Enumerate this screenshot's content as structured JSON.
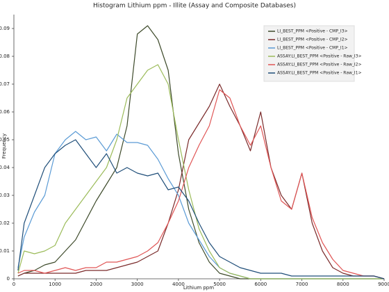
{
  "chart_data": {
    "type": "line",
    "title": "Histogram Lithium ppm - Illite (Assay and Composite Databases)",
    "xlabel": "Lithium ppm",
    "ylabel": "Frequency",
    "xlim": [
      0,
      9000
    ],
    "ylim": [
      0,
      0.095
    ],
    "xticks": [
      0,
      1000,
      2000,
      3000,
      4000,
      5000,
      6000,
      7000,
      8000,
      9000
    ],
    "yticks": [
      0,
      0.01,
      0.02,
      0.03,
      0.04,
      0.05,
      0.06,
      0.07,
      0.08,
      0.09
    ],
    "legend": "upper right",
    "x": [
      100,
      250,
      500,
      750,
      1000,
      1250,
      1500,
      1750,
      2000,
      2250,
      2500,
      2750,
      3000,
      3250,
      3500,
      3750,
      4000,
      4250,
      4500,
      4750,
      5000,
      5250,
      5500,
      5750,
      6000,
      6250,
      6500,
      6750,
      7000,
      7250,
      7500,
      7750,
      8000,
      8250,
      8500,
      8750,
      9000
    ],
    "series": [
      {
        "name": "LI_BEST_PPM <Positive - CMP_I3>",
        "color": "#3d4a2a",
        "values": [
          0.001,
          0.002,
          0.003,
          0.005,
          0.006,
          0.01,
          0.014,
          0.021,
          0.028,
          0.034,
          0.04,
          0.055,
          0.088,
          0.091,
          0.086,
          0.075,
          0.045,
          0.025,
          0.013,
          0.006,
          0.002,
          0.001,
          0,
          0,
          0,
          0,
          0,
          0,
          0,
          0,
          0,
          0,
          0,
          0,
          0,
          0,
          0
        ]
      },
      {
        "name": "LI_BEST_PPM <Positive - CMP_I2>",
        "color": "#7a2a2a",
        "values": [
          0.001,
          0.002,
          0.002,
          0.002,
          0.002,
          0.002,
          0.002,
          0.003,
          0.003,
          0.003,
          0.004,
          0.005,
          0.006,
          0.008,
          0.01,
          0.02,
          0.032,
          0.05,
          0.056,
          0.062,
          0.07,
          0.062,
          0.055,
          0.046,
          0.06,
          0.04,
          0.03,
          0.025,
          0.038,
          0.02,
          0.01,
          0.004,
          0.002,
          0.001,
          0.001,
          0.001,
          0
        ]
      },
      {
        "name": "LI_BEST_PPM <Positive - CMP_I1>",
        "color": "#5b9bd5",
        "values": [
          0.004,
          0.015,
          0.024,
          0.03,
          0.045,
          0.05,
          0.053,
          0.05,
          0.051,
          0.046,
          0.052,
          0.049,
          0.049,
          0.048,
          0.043,
          0.036,
          0.03,
          0.02,
          0.014,
          0.008,
          0.004,
          0.002,
          0.001,
          0,
          0,
          0,
          0,
          0,
          0,
          0,
          0,
          0,
          0,
          0,
          0,
          0,
          0
        ]
      },
      {
        "name": "ASSAY:LI_BEST_PPM <Positive - Raw_I3>",
        "color": "#9bbb59",
        "values": [
          0.002,
          0.01,
          0.009,
          0.01,
          0.012,
          0.02,
          0.025,
          0.03,
          0.035,
          0.04,
          0.05,
          0.065,
          0.07,
          0.075,
          0.077,
          0.07,
          0.05,
          0.032,
          0.018,
          0.01,
          0.004,
          0.002,
          0.001,
          0,
          0,
          0,
          0,
          0,
          0,
          0,
          0,
          0,
          0,
          0,
          0,
          0,
          0
        ]
      },
      {
        "name": "ASSAY:LI_BEST_PPM <Positive - Raw_I2>",
        "color": "#e05555",
        "values": [
          0.002,
          0.003,
          0.003,
          0.002,
          0.003,
          0.004,
          0.003,
          0.004,
          0.004,
          0.006,
          0.006,
          0.007,
          0.008,
          0.01,
          0.013,
          0.02,
          0.028,
          0.04,
          0.048,
          0.055,
          0.068,
          0.065,
          0.055,
          0.048,
          0.055,
          0.04,
          0.028,
          0.025,
          0.038,
          0.022,
          0.013,
          0.007,
          0.003,
          0.002,
          0.001,
          0.001,
          0
        ]
      },
      {
        "name": "ASSAY:LI_BEST_PPM <Positive - Raw_I1>",
        "color": "#1f4e79",
        "values": [
          0.003,
          0.02,
          0.03,
          0.04,
          0.045,
          0.048,
          0.05,
          0.045,
          0.04,
          0.045,
          0.038,
          0.04,
          0.038,
          0.037,
          0.038,
          0.032,
          0.033,
          0.028,
          0.02,
          0.013,
          0.008,
          0.006,
          0.004,
          0.003,
          0.002,
          0.002,
          0.002,
          0.001,
          0.001,
          0.001,
          0.001,
          0.001,
          0.001,
          0.001,
          0.001,
          0.001,
          0
        ]
      }
    ]
  }
}
